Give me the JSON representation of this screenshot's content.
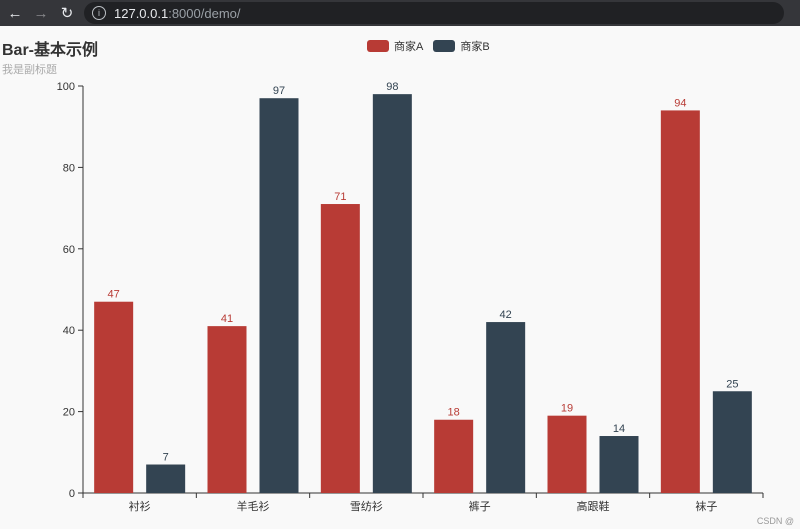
{
  "browser": {
    "url_host": "127.0.0.1",
    "url_rest": ":8000/demo/"
  },
  "watermark": "CSDN @",
  "colors": {
    "series_a": "#b83b35",
    "series_b": "#334452"
  },
  "chart_data": {
    "type": "bar",
    "title": "Bar-基本示例",
    "subtitle": "我是副标题",
    "categories": [
      "衬衫",
      "羊毛衫",
      "雪纺衫",
      "裤子",
      "高跟鞋",
      "袜子"
    ],
    "series": [
      {
        "name": "商家A",
        "values": [
          47,
          41,
          71,
          18,
          19,
          94
        ]
      },
      {
        "name": "商家B",
        "values": [
          7,
          97,
          98,
          42,
          14,
          25
        ]
      }
    ],
    "ylim": [
      0,
      100
    ],
    "yticks": [
      0,
      20,
      40,
      60,
      80,
      100
    ],
    "legend_position": "top-center",
    "grid": false
  }
}
